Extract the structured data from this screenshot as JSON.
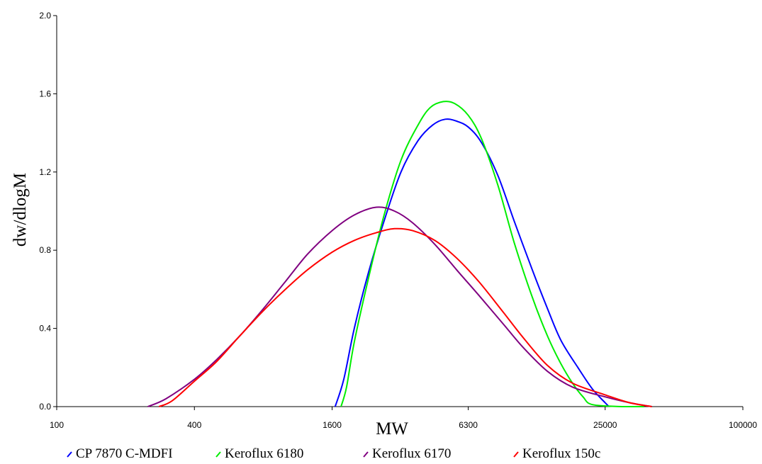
{
  "chart_data": {
    "type": "line",
    "title": "",
    "xlabel": "MW",
    "ylabel": "dw/dlogM",
    "x_scale": "log",
    "xlim": [
      100,
      100000
    ],
    "ylim": [
      0,
      2.0
    ],
    "x_ticks": [
      100,
      400,
      1600,
      6300,
      25000,
      100000
    ],
    "x_tick_labels": [
      "100",
      "400",
      "1600",
      "6300",
      "25000",
      "100000"
    ],
    "y_ticks": [
      0,
      0.4,
      0.8,
      1.2,
      1.6,
      2.0
    ],
    "y_tick_labels": [
      "0.0",
      "0.4",
      "0.8",
      "1.2",
      "1.6",
      "2.0"
    ],
    "grid": false,
    "legend_position": "bottom",
    "series": [
      {
        "name": "CP 7870 C-MDFI",
        "color": "#0000ff",
        "points": [
          [
            1650,
            0
          ],
          [
            1800,
            0.14
          ],
          [
            2000,
            0.4
          ],
          [
            2300,
            0.68
          ],
          [
            2700,
            0.95
          ],
          [
            3200,
            1.2
          ],
          [
            3800,
            1.36
          ],
          [
            4400,
            1.44
          ],
          [
            5000,
            1.47
          ],
          [
            5600,
            1.46
          ],
          [
            6300,
            1.43
          ],
          [
            7200,
            1.35
          ],
          [
            8500,
            1.18
          ],
          [
            10000,
            0.95
          ],
          [
            12000,
            0.7
          ],
          [
            14000,
            0.5
          ],
          [
            16000,
            0.34
          ],
          [
            19000,
            0.2
          ],
          [
            22000,
            0.09
          ],
          [
            25000,
            0.02
          ],
          [
            26000,
            0
          ]
        ]
      },
      {
        "name": "Keroflux 6180",
        "color": "#00ee00",
        "points": [
          [
            1750,
            0
          ],
          [
            1850,
            0.1
          ],
          [
            2000,
            0.33
          ],
          [
            2300,
            0.65
          ],
          [
            2700,
            0.98
          ],
          [
            3200,
            1.26
          ],
          [
            3800,
            1.44
          ],
          [
            4300,
            1.53
          ],
          [
            4900,
            1.56
          ],
          [
            5500,
            1.55
          ],
          [
            6300,
            1.49
          ],
          [
            7200,
            1.37
          ],
          [
            8500,
            1.13
          ],
          [
            10000,
            0.84
          ],
          [
            12000,
            0.56
          ],
          [
            14000,
            0.36
          ],
          [
            16000,
            0.22
          ],
          [
            18000,
            0.12
          ],
          [
            20000,
            0.05
          ],
          [
            22000,
            0.01
          ],
          [
            30000,
            0
          ],
          [
            37000,
            0
          ]
        ]
      },
      {
        "name": "Keroflux 6170",
        "color": "#800080",
        "points": [
          [
            250,
            0
          ],
          [
            300,
            0.04
          ],
          [
            400,
            0.14
          ],
          [
            500,
            0.24
          ],
          [
            630,
            0.36
          ],
          [
            800,
            0.5
          ],
          [
            1000,
            0.64
          ],
          [
            1250,
            0.78
          ],
          [
            1600,
            0.9
          ],
          [
            2000,
            0.98
          ],
          [
            2500,
            1.02
          ],
          [
            3000,
            1.0
          ],
          [
            3600,
            0.94
          ],
          [
            4500,
            0.83
          ],
          [
            5600,
            0.7
          ],
          [
            7000,
            0.57
          ],
          [
            9000,
            0.42
          ],
          [
            11000,
            0.3
          ],
          [
            14000,
            0.18
          ],
          [
            18000,
            0.1
          ],
          [
            25000,
            0.05
          ],
          [
            32000,
            0.02
          ],
          [
            40000,
            0
          ]
        ]
      },
      {
        "name": "Keroflux 150c",
        "color": "#ff0000",
        "points": [
          [
            280,
            0
          ],
          [
            320,
            0.03
          ],
          [
            400,
            0.13
          ],
          [
            500,
            0.23
          ],
          [
            630,
            0.36
          ],
          [
            800,
            0.49
          ],
          [
            1000,
            0.6
          ],
          [
            1250,
            0.7
          ],
          [
            1600,
            0.79
          ],
          [
            2000,
            0.85
          ],
          [
            2500,
            0.89
          ],
          [
            3000,
            0.91
          ],
          [
            3600,
            0.9
          ],
          [
            4500,
            0.85
          ],
          [
            5600,
            0.76
          ],
          [
            7000,
            0.64
          ],
          [
            9000,
            0.48
          ],
          [
            11000,
            0.35
          ],
          [
            14000,
            0.21
          ],
          [
            18000,
            0.12
          ],
          [
            25000,
            0.06
          ],
          [
            32000,
            0.02
          ],
          [
            40000,
            0
          ]
        ]
      }
    ]
  }
}
